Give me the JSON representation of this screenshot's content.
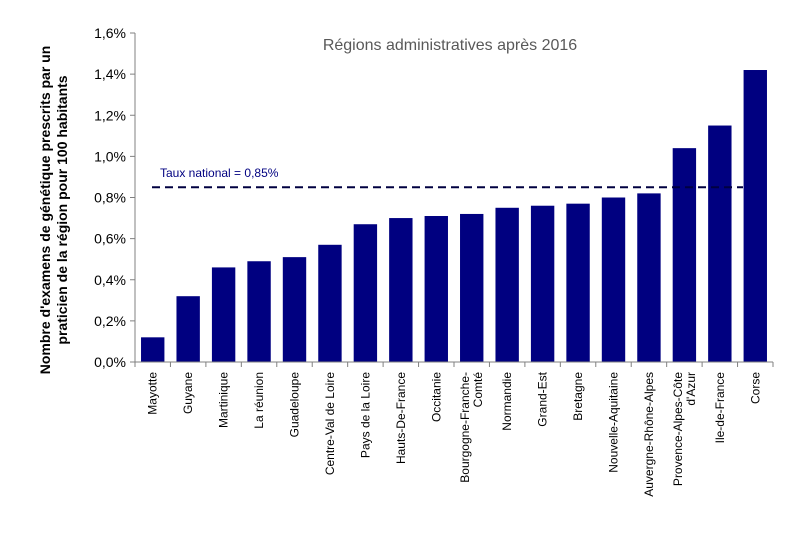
{
  "chart_data": {
    "type": "bar",
    "title": "Régions administratives après 2016",
    "ylabel_lines": [
      "Nombre d'examens de génétique prescrits par un",
      "praticien de la région pour 100 habitants"
    ],
    "xlabel": "",
    "ylim": [
      0,
      1.6
    ],
    "yticks": [
      0,
      0.2,
      0.4,
      0.6,
      0.8,
      1.0,
      1.2,
      1.4,
      1.6
    ],
    "ytick_labels": [
      "0,0%",
      "0,2%",
      "0,4%",
      "0,6%",
      "0,8%",
      "1,0%",
      "1,2%",
      "1,4%",
      "1,6%"
    ],
    "categories": [
      [
        "Mayotte"
      ],
      [
        "Guyane"
      ],
      [
        "Martinique"
      ],
      [
        "La réunion"
      ],
      [
        "Guadeloupe"
      ],
      [
        "Centre-Val de Loire"
      ],
      [
        "Pays de la Loire"
      ],
      [
        "Hauts-De-France"
      ],
      [
        "Occitanie"
      ],
      [
        "Bourgogne-Franche-",
        "Comté"
      ],
      [
        "Normandie"
      ],
      [
        "Grand-Est"
      ],
      [
        "Bretagne"
      ],
      [
        "Nouvelle-Aquitaine"
      ],
      [
        "Auvergne-Rhône-Alpes"
      ],
      [
        "Provence-Alpes-Côte",
        "d'Azur"
      ],
      [
        "Ile-de-France"
      ],
      [
        "Corse"
      ]
    ],
    "values": [
      0.12,
      0.32,
      0.46,
      0.49,
      0.51,
      0.57,
      0.67,
      0.7,
      0.71,
      0.72,
      0.75,
      0.76,
      0.77,
      0.8,
      0.82,
      1.04,
      1.15,
      1.42
    ],
    "reference_line": {
      "value": 0.85,
      "label": "Taux national = 0,85%"
    },
    "bar_color": "#000080",
    "grid": false,
    "legend": "none"
  }
}
